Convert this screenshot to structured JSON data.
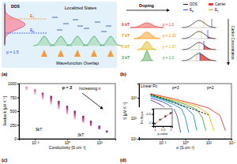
{
  "panel_labels": [
    "(a)",
    "(b)",
    "(c)",
    "(d)"
  ],
  "diagram_a": {
    "dos": "DOS",
    "e_t": {
      "main": "E",
      "sub": "T"
    },
    "e_f": {
      "main": "E",
      "sub": "F"
    },
    "p": "p = 1.5",
    "localized": "Localized States",
    "overlap": "Wavefunction Overlap"
  },
  "diagram_b": {
    "doping": "Doping",
    "carrier_axis": "Carrier Concentration",
    "rows": [
      {
        "label": "9 kT",
        "p": "p = 1.0",
        "color": "#e53935"
      },
      {
        "label": "7 kT",
        "p": "p = 1.33",
        "color": "#fb8c00"
      },
      {
        "label": "5 kT",
        "p": "p = 1.67",
        "color": "#e0b000"
      },
      {
        "label": "3 kT",
        "p": "p = 2.0",
        "color": "#43a047"
      }
    ],
    "legend": [
      {
        "label": "DOS",
        "color": "#000000"
      },
      {
        "label": "Carrier",
        "color": "#e53935"
      },
      {
        "label": {
          "main": "E",
          "sub": "F"
        },
        "color": "#1e40ff"
      },
      {
        "label": {
          "main": "E",
          "sub": "T"
        },
        "color": "#ff8c00"
      }
    ]
  },
  "chart_data": [
    {
      "type": "scatter",
      "title": "p = 2",
      "x_label": "Conductivity [S cm⁻¹]",
      "y_label": "Seebeck [μV K⁻¹]",
      "log": "x",
      "xlim": [
        0.001,
        1000
      ],
      "xticks": [
        {
          "value": 0.01,
          "label": "10⁻²"
        },
        {
          "value": 1,
          "label": "10⁰"
        },
        {
          "value": 100,
          "label": "10²"
        }
      ],
      "ylim": [
        0,
        1000
      ],
      "yticks": [
        0,
        250,
        500,
        750,
        1000
      ],
      "marker": "square",
      "annotations": [
        "9kT",
        "3kT",
        "Increasing n"
      ],
      "series": [
        {
          "color": "#f4b6d8",
          "x": [
            0.001,
            0.003,
            0.01,
            0.03,
            0.1,
            0.3,
            1,
            3
          ],
          "values": [
            980,
            900,
            820,
            730,
            640,
            550,
            460,
            370
          ]
        },
        {
          "color": "#e88cc4",
          "x": [
            0.003,
            0.01,
            0.03,
            0.1,
            0.3,
            1,
            3,
            10
          ],
          "values": [
            930,
            850,
            760,
            670,
            580,
            490,
            400,
            310
          ]
        },
        {
          "color": "#d65aa8",
          "x": [
            0.01,
            0.03,
            0.1,
            0.3,
            1,
            3,
            10,
            30
          ],
          "values": [
            880,
            790,
            700,
            610,
            520,
            430,
            340,
            250
          ]
        },
        {
          "color": "#b8328c",
          "x": [
            0.03,
            0.1,
            0.3,
            1,
            3,
            10,
            30,
            100
          ],
          "values": [
            820,
            730,
            640,
            550,
            460,
            370,
            280,
            190
          ]
        },
        {
          "color": "#8a1b6e",
          "x": [
            0.1,
            0.3,
            1,
            3,
            10,
            30,
            100,
            300
          ],
          "values": [
            760,
            670,
            580,
            490,
            400,
            310,
            220,
            130
          ]
        }
      ]
    },
    {
      "type": "line",
      "x_label": "σ [S cm⁻¹]",
      "y_label": "S [μV K⁻¹]",
      "log": true,
      "xlim": [
        0.0001,
        10000
      ],
      "xticks": [
        {
          "value": 0.01,
          "label": "10⁻²"
        },
        {
          "value": 1,
          "label": "10⁰"
        },
        {
          "value": 100,
          "label": "10²"
        },
        {
          "value": 10000,
          "label": "10⁴"
        }
      ],
      "ylim": [
        10,
        5000
      ],
      "yticks": [
        {
          "value": 10,
          "label": "10¹"
        },
        {
          "value": 100,
          "label": "10²"
        },
        {
          "value": 1000,
          "label": "10³"
        }
      ],
      "annotations": [
        "Linear Fit",
        "p=3",
        "p=2"
      ],
      "series": [
        {
          "color": "#5e2ca5",
          "x": [
            0.001,
            0.003,
            0.01,
            0.03,
            0.06,
            0.1
          ],
          "values": [
            800,
            600,
            420,
            250,
            110,
            20
          ]
        },
        {
          "color": "#3f51b5",
          "x": [
            0.001,
            0.01,
            0.03,
            0.1,
            0.2,
            0.4
          ],
          "values": [
            1000,
            650,
            480,
            300,
            130,
            20
          ]
        },
        {
          "color": "#1e88e5",
          "x": [
            0.001,
            0.01,
            0.1,
            0.5,
            1,
            2
          ],
          "values": [
            1200,
            800,
            480,
            280,
            110,
            20
          ]
        },
        {
          "color": "#00a0a0",
          "x": [
            0.001,
            0.01,
            0.1,
            1,
            5,
            10
          ],
          "values": [
            1300,
            900,
            600,
            350,
            150,
            25
          ]
        },
        {
          "color": "#43a047",
          "x": [
            0.001,
            0.01,
            0.1,
            1,
            10,
            30,
            60
          ],
          "values": [
            1400,
            1000,
            700,
            480,
            270,
            110,
            25
          ]
        },
        {
          "color": "#f2b705",
          "x": [
            0.001,
            0.01,
            0.1,
            1,
            10,
            100,
            300
          ],
          "values": [
            1500,
            1100,
            800,
            560,
            380,
            170,
            25
          ]
        },
        {
          "color": "#e53935",
          "x": [
            0.001,
            0.01,
            0.1,
            1,
            10,
            100,
            1000,
            3000
          ],
          "values": [
            1600,
            1200,
            900,
            650,
            470,
            320,
            140,
            25
          ]
        },
        {
          "color": "#000000",
          "line_style": "dashed",
          "x": [
            0.001,
            100
          ],
          "values": [
            1500,
            150
          ]
        }
      ]
    },
    {
      "type": "scatter",
      "x_label": "p-value",
      "y_label": "Fit Slope",
      "xlim": [
        0.9,
        2.1
      ],
      "xticks": [
        1,
        1.5,
        2
      ],
      "ylim": [
        -1.2,
        -0.2
      ],
      "yticks": [
        -1,
        -0.5
      ],
      "series": [
        {
          "color": "#333333",
          "marker": "circle",
          "x": [
            1,
            1.33,
            1.67,
            2
          ],
          "values": [
            -1.05,
            -0.82,
            -0.63,
            -0.45
          ]
        },
        {
          "type": "line",
          "line_style": "dashed",
          "color": "#e53935",
          "x": [
            0.9,
            2.1
          ],
          "values": [
            -1.12,
            -0.39
          ]
        }
      ]
    }
  ]
}
